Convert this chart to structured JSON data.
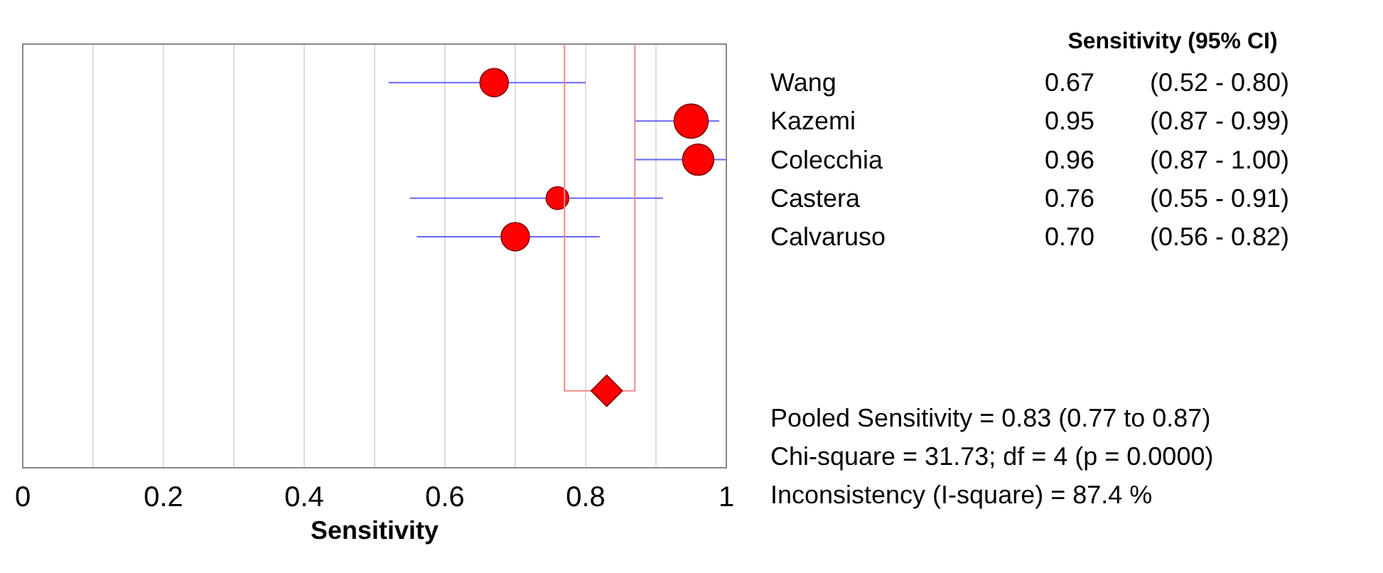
{
  "chart_data": {
    "type": "scatter",
    "orientation": "horizontal",
    "xlabel": "Sensitivity",
    "legend_title": "Sensitivity (95% CI)",
    "categories": [
      "Wang",
      "Kazemi",
      "Colecchia",
      "Castera",
      "Calvaruso",
      null,
      null,
      null,
      null
    ],
    "series": [
      {
        "type": "bubble",
        "color": "#ff0000",
        "marker": "circle",
        "values": [
          0.67,
          0.95,
          0.96,
          0.76,
          0.7,
          null,
          null,
          null,
          null
        ],
        "errors": [
          [
            0.52,
            0.8
          ],
          [
            0.87,
            0.99
          ],
          [
            0.87,
            1.0
          ],
          [
            0.55,
            0.91
          ],
          [
            0.56,
            0.82
          ],
          null,
          null,
          null,
          null
        ],
        "sizes": [
          0.69,
          1,
          0.84,
          0.44,
          0.69,
          null,
          null,
          null,
          null
        ],
        "value_labels": [
          "0.67 (0.52 - 0.80)",
          "0.95 (0.87 - 0.99)",
          "0.96 (0.87 - 1.00)",
          "0.76 (0.55 - 0.91)",
          "0.70 (0.56 - 0.82)",
          null,
          null,
          null,
          null
        ]
      },
      {
        "type": "scatter",
        "color": "#ff0000",
        "marker": "diamond",
        "values": [
          null,
          null,
          null,
          null,
          null,
          null,
          null,
          null,
          0.83
        ],
        "errors": [
          null,
          null,
          null,
          null,
          null,
          null,
          null,
          null,
          [
            0.77,
            0.87
          ]
        ]
      }
    ],
    "xlim": [
      0,
      1
    ],
    "xticks": [
      0,
      {
        "value": 0.1,
        "label": null
      },
      0.2,
      {
        "value": 0.3,
        "label": null
      },
      0.4,
      {
        "value": 0.5,
        "label": null
      },
      0.6,
      {
        "value": 0.7,
        "label": null
      },
      0.8,
      {
        "value": 0.9,
        "label": null
      },
      1
    ],
    "grid": "x",
    "annotations": [
      "Pooled Sensitivity = 0.83 (0.77 to 0.87)",
      "Chi-square = 31.73; df =  4 (p = 0.0000)",
      "Inconsistency (I-square) = 87.4 %"
    ]
  }
}
